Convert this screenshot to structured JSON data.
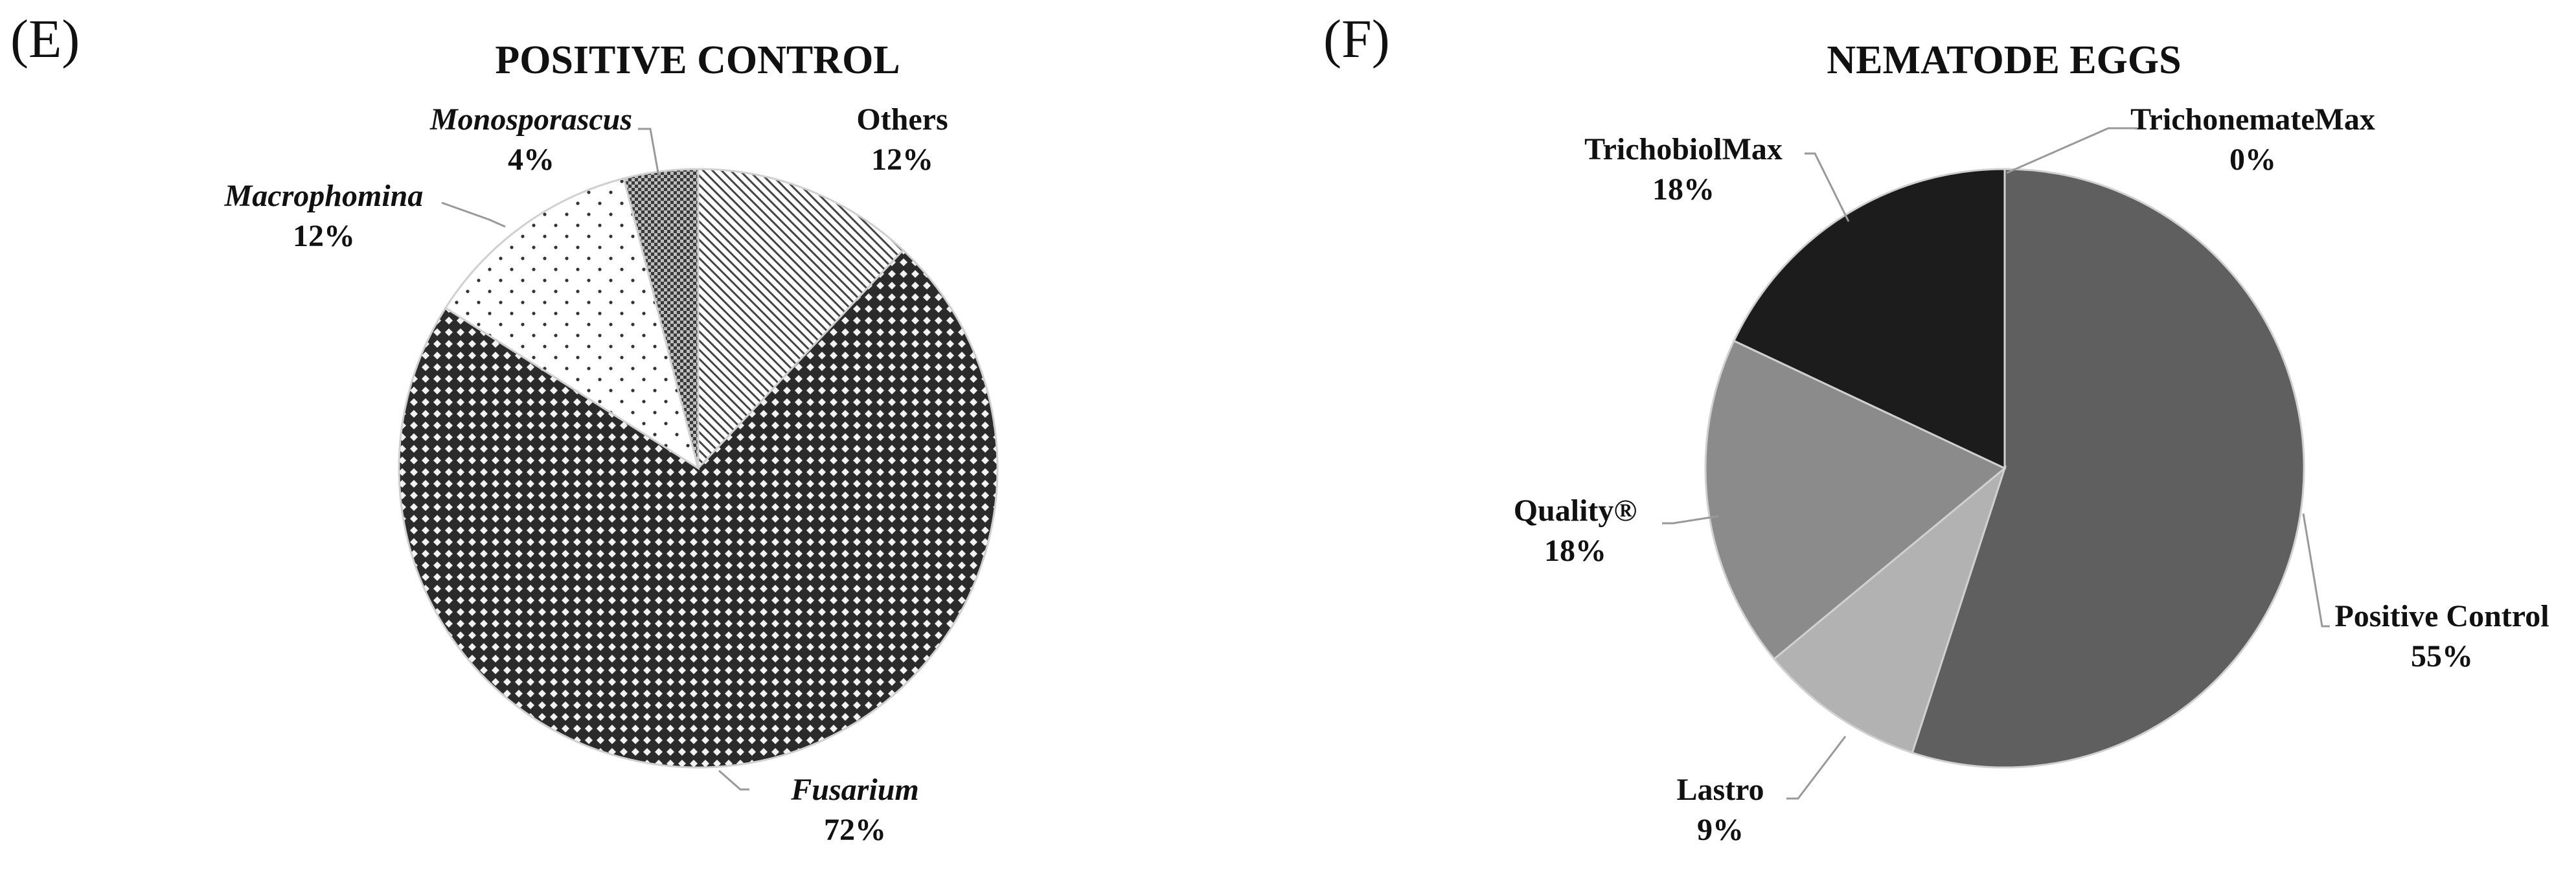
{
  "chart_data": [
    {
      "type": "pie",
      "panel": "(E)",
      "title": "POSITIVE CONTROL",
      "slices": [
        {
          "name": "Others",
          "value": 12,
          "label": "12%",
          "pattern": "hatch",
          "italic": false
        },
        {
          "name": "Fusarium",
          "value": 72,
          "label": "72%",
          "pattern": "diamond",
          "italic": true
        },
        {
          "name": "Macrophomina",
          "value": 12,
          "label": "12%",
          "pattern": "dots",
          "italic": true
        },
        {
          "name": "Monosporascus",
          "value": 4,
          "label": "4%",
          "pattern": "checker",
          "italic": true
        }
      ],
      "start_angle_deg": 0,
      "direction": "clockwise"
    },
    {
      "type": "pie",
      "panel": "(F)",
      "title": "NEMATODE EGGS",
      "slices": [
        {
          "name": "Positive Control",
          "value": 55,
          "label": "55%",
          "color": "#5f5f5f",
          "italic": false
        },
        {
          "name": "Lastro",
          "value": 9,
          "label": "9%",
          "color": "#b2b2b2",
          "italic": false
        },
        {
          "name": "Quality®",
          "value": 18,
          "label": "18%",
          "color": "#8b8b8b",
          "italic": false
        },
        {
          "name": "TrichobiolMax",
          "value": 18,
          "label": "18%",
          "color": "#1c1c1c",
          "italic": false
        },
        {
          "name": "TrichonemateMax",
          "value": 0,
          "label": "0%",
          "color": "#ffffff",
          "italic": false
        }
      ],
      "start_angle_deg": 0,
      "direction": "clockwise"
    }
  ]
}
